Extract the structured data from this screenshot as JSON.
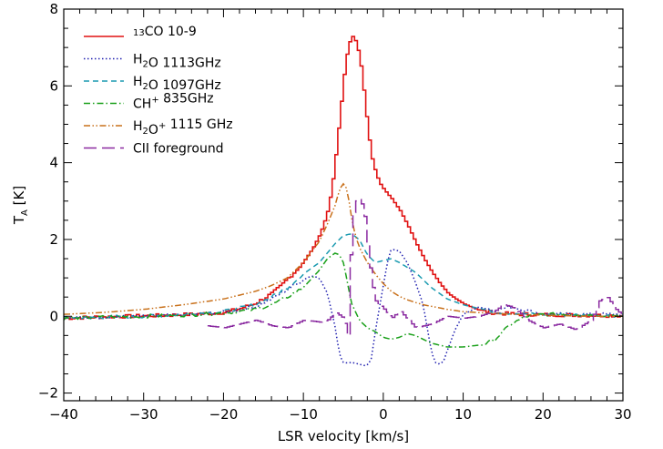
{
  "chart_data": {
    "type": "line",
    "xlabel": "LSR velocity [km/s]",
    "ylabel_main": "T",
    "ylabel_sub": "A",
    "ylabel_unit": " [K]",
    "xlim": [
      -40,
      30
    ],
    "ylim": [
      -2.2,
      8
    ],
    "x_ticks": [
      -40,
      -30,
      -20,
      -10,
      0,
      10,
      20,
      30
    ],
    "x_tick_labels": [
      "−40",
      "−30",
      "−20",
      "−10",
      "0",
      "10",
      "20",
      "30"
    ],
    "y_ticks": [
      -2,
      0,
      2,
      4,
      6,
      8
    ],
    "y_tick_labels": [
      "−2",
      "0",
      "2",
      "4",
      "6",
      "8"
    ],
    "legend_position": "top-left",
    "series": [
      {
        "name": "13CO 10-9",
        "label_parts": [
          {
            "t": "13",
            "sup": true
          },
          {
            "t": "CO 10-9"
          }
        ],
        "color": "#e01010",
        "style": "solid",
        "step": true,
        "x": [
          -40,
          -36,
          -32,
          -28,
          -24,
          -20,
          -18,
          -16,
          -14,
          -13,
          -12,
          -11,
          -10,
          -9,
          -8,
          -7.5,
          -7,
          -6.5,
          -6,
          -5.5,
          -5,
          -4.5,
          -4,
          -3.5,
          -3,
          -2.5,
          -2,
          -1.5,
          -1,
          -0.5,
          0,
          1,
          2,
          3,
          4,
          5,
          6,
          7,
          8,
          9,
          10,
          12,
          14,
          16,
          18,
          20,
          24,
          28,
          30
        ],
        "y": [
          -0.05,
          -0.02,
          0.0,
          0.02,
          0.05,
          0.1,
          0.2,
          0.35,
          0.6,
          0.78,
          1.0,
          1.2,
          1.45,
          1.75,
          2.15,
          2.45,
          2.8,
          3.4,
          4.3,
          5.3,
          6.3,
          7.05,
          7.3,
          7.15,
          6.7,
          5.8,
          4.8,
          4.1,
          3.7,
          3.45,
          3.3,
          3.05,
          2.75,
          2.35,
          1.9,
          1.5,
          1.15,
          0.85,
          0.6,
          0.45,
          0.32,
          0.15,
          0.08,
          0.06,
          0.05,
          0.04,
          0.03,
          0.02,
          0.02
        ]
      },
      {
        "name": "H2O 1113GHz",
        "label_parts": [
          {
            "t": "H"
          },
          {
            "t": "2",
            "sub": true
          },
          {
            "t": "O  1113GHz"
          }
        ],
        "color": "#2020b0",
        "style": "dotted",
        "x": [
          -40,
          -35,
          -30,
          -25,
          -20,
          -16,
          -14,
          -12,
          -10,
          -9,
          -8,
          -7,
          -6,
          -5.5,
          -5,
          -4.5,
          -4,
          -3,
          -2,
          -1.5,
          -1,
          0,
          0.5,
          1,
          2,
          3,
          4,
          5,
          5.5,
          6,
          6.5,
          7,
          7.5,
          8,
          9,
          10,
          12,
          14,
          16,
          18,
          20,
          24,
          28,
          30
        ],
        "y": [
          -0.05,
          -0.02,
          0.0,
          0.03,
          0.1,
          0.25,
          0.45,
          0.7,
          0.95,
          1.05,
          1.0,
          0.6,
          -0.3,
          -1.0,
          -1.2,
          -1.22,
          -1.2,
          -1.25,
          -1.3,
          -1.1,
          -0.4,
          0.8,
          1.4,
          1.75,
          1.7,
          1.4,
          0.9,
          0.3,
          -0.3,
          -0.9,
          -1.2,
          -1.25,
          -1.2,
          -0.9,
          -0.35,
          0.05,
          0.25,
          0.15,
          0.25,
          0.15,
          0.05,
          0.05,
          0.05,
          0.05
        ]
      },
      {
        "name": "H2O 1097GHz",
        "label_parts": [
          {
            "t": "H"
          },
          {
            "t": "2",
            "sub": true
          },
          {
            "t": "O  1097GHz"
          }
        ],
        "color": "#1a9ab0",
        "style": "dashed",
        "x": [
          -40,
          -35,
          -30,
          -25,
          -20,
          -16,
          -14,
          -12,
          -10,
          -8,
          -6,
          -5,
          -4,
          -3,
          -2,
          -1,
          0,
          1,
          2,
          4,
          6,
          8,
          10,
          12,
          14,
          16,
          20,
          24,
          28,
          30
        ],
        "y": [
          -0.05,
          -0.02,
          0.0,
          0.05,
          0.12,
          0.3,
          0.5,
          0.75,
          1.1,
          1.4,
          1.9,
          2.1,
          2.15,
          2.0,
          1.6,
          1.4,
          1.45,
          1.5,
          1.4,
          1.15,
          0.75,
          0.45,
          0.3,
          0.2,
          0.12,
          0.08,
          0.05,
          0.03,
          0.02,
          0.02
        ]
      },
      {
        "name": "CH+ 835GHz",
        "label_parts": [
          {
            "t": "CH"
          },
          {
            "t": "+",
            "sup": true
          },
          {
            "t": "  835GHz"
          }
        ],
        "color": "#1aa01a",
        "style": "dashdot",
        "x": [
          -40,
          -35,
          -30,
          -25,
          -20,
          -16,
          -14,
          -12,
          -10,
          -8,
          -7,
          -6,
          -5.5,
          -5,
          -4.5,
          -4,
          -3,
          -2,
          -1,
          0,
          1,
          2,
          3,
          4,
          6,
          8,
          10,
          12,
          13,
          14,
          16,
          18,
          20,
          24,
          28,
          30
        ],
        "y": [
          -0.05,
          -0.02,
          0.0,
          0.03,
          0.08,
          0.18,
          0.3,
          0.5,
          0.75,
          1.2,
          1.5,
          1.65,
          1.6,
          1.4,
          0.9,
          0.35,
          -0.1,
          -0.3,
          -0.4,
          -0.55,
          -0.6,
          -0.55,
          -0.45,
          -0.5,
          -0.7,
          -0.8,
          -0.8,
          -0.75,
          -0.7,
          -0.6,
          -0.2,
          0.0,
          0.05,
          0.05,
          0.03,
          0.02
        ]
      },
      {
        "name": "H2O+ 1115 GHz",
        "label_parts": [
          {
            "t": "H"
          },
          {
            "t": "2",
            "sub": true
          },
          {
            "t": "O"
          },
          {
            "t": "+",
            "sup": true
          },
          {
            "t": "  1115 GHz"
          }
        ],
        "color": "#c8701a",
        "style": "dashdotdot",
        "x": [
          -40,
          -35,
          -30,
          -25,
          -20,
          -16,
          -14,
          -12,
          -10,
          -8,
          -7,
          -6,
          -5.5,
          -5,
          -4.5,
          -4,
          -3.5,
          -3,
          -2,
          -1,
          0,
          1,
          2,
          3,
          4,
          5,
          6,
          8,
          10,
          14,
          18,
          22,
          26,
          30
        ],
        "y": [
          0.05,
          0.1,
          0.18,
          0.3,
          0.45,
          0.65,
          0.8,
          1.0,
          1.4,
          1.95,
          2.4,
          2.9,
          3.3,
          3.45,
          3.3,
          2.6,
          2.1,
          1.8,
          1.4,
          1.1,
          0.85,
          0.65,
          0.52,
          0.43,
          0.36,
          0.3,
          0.26,
          0.18,
          0.12,
          0.07,
          0.04,
          0.02,
          0.0,
          0.0
        ]
      },
      {
        "name": "CII foreground",
        "label_parts": [
          {
            "t": "CII foreground"
          }
        ],
        "color": "#8a2aa0",
        "style": "longdash",
        "step": true,
        "x": [
          -22,
          -20,
          -18,
          -16,
          -14,
          -12,
          -10,
          -8,
          -7,
          -6,
          -5,
          -4.5,
          -4,
          -3.5,
          -3,
          -2.5,
          -2,
          -1.5,
          -1,
          0,
          1,
          2,
          4,
          6,
          8,
          10,
          12,
          14,
          15,
          16,
          17,
          18,
          20,
          22,
          24,
          26,
          27,
          28,
          29,
          30
        ],
        "y": [
          -0.25,
          -0.3,
          -0.2,
          -0.1,
          -0.25,
          -0.3,
          -0.1,
          -0.15,
          -0.1,
          0.1,
          -0.05,
          -0.5,
          2.5,
          3.0,
          3.05,
          2.8,
          1.8,
          0.9,
          0.4,
          0.2,
          -0.05,
          0.15,
          -0.3,
          -0.2,
          0.0,
          -0.05,
          0.0,
          0.15,
          0.3,
          0.25,
          0.1,
          -0.1,
          -0.3,
          -0.2,
          -0.35,
          -0.1,
          0.4,
          0.5,
          0.2,
          0.0
        ]
      }
    ]
  }
}
